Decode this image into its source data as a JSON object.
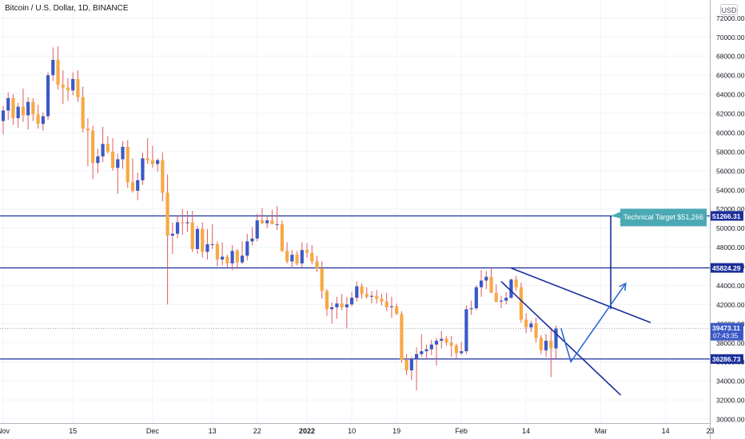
{
  "header": {
    "symbol_line": "Bitcoin / U.S. Dollar, 1D, BINANCE",
    "currency_label": "USD"
  },
  "colors": {
    "up_candle": "#3b59c6",
    "down_candle": "#f7a944",
    "wick": "#e05b5b",
    "drawing": "#1a2f9a",
    "callout": "#4aa9b3",
    "grid": "#f0f3fa",
    "axis_text": "#131722"
  },
  "chart_data": {
    "type": "candlestick",
    "ylim": [
      29500,
      73200
    ],
    "y_ticks": [
      30000,
      32000,
      34000,
      36000,
      38000,
      40000,
      42000,
      44000,
      46000,
      48000,
      50000,
      52000,
      54000,
      56000,
      58000,
      60000,
      62000,
      64000,
      66000,
      68000,
      70000,
      72000
    ],
    "y_tick_labels": [
      "30000.00",
      "32000.00",
      "34000.00",
      "36000.00",
      "38000.00",
      "40000.00",
      "42000.00",
      "44000.00",
      "46000.00",
      "48000.00",
      "50000.00",
      "52000.00",
      "54000.00",
      "56000.00",
      "58000.00",
      "60000.00",
      "62000.00",
      "64000.00",
      "66000.00",
      "68000.00",
      "70000.00",
      "72000.00"
    ],
    "x_ticks": [
      {
        "day": 0,
        "label": "Nov",
        "bold": false
      },
      {
        "day": 14,
        "label": "15",
        "bold": false
      },
      {
        "day": 30,
        "label": "Dec",
        "bold": false
      },
      {
        "day": 42,
        "label": "13",
        "bold": false
      },
      {
        "day": 51,
        "label": "22",
        "bold": false
      },
      {
        "day": 61,
        "label": "2022",
        "bold": true
      },
      {
        "day": 70,
        "label": "10",
        "bold": false
      },
      {
        "day": 79,
        "label": "19",
        "bold": false
      },
      {
        "day": 92,
        "label": "Feb",
        "bold": false
      },
      {
        "day": 105,
        "label": "14",
        "bold": false
      },
      {
        "day": 120,
        "label": "Mar",
        "bold": false
      },
      {
        "day": 133,
        "label": "14",
        "bold": false
      },
      {
        "day": 142,
        "label": "23",
        "bold": false
      }
    ],
    "candles": [
      [
        0,
        61200,
        62800,
        59800,
        62300
      ],
      [
        1,
        62300,
        64200,
        61300,
        63600
      ],
      [
        2,
        63600,
        64000,
        60800,
        61500
      ],
      [
        3,
        61500,
        63100,
        60500,
        62700
      ],
      [
        4,
        62700,
        64600,
        61100,
        61800
      ],
      [
        5,
        61800,
        63700,
        60300,
        63200
      ],
      [
        6,
        63200,
        63600,
        61200,
        61900
      ],
      [
        7,
        61900,
        62900,
        60400,
        60900
      ],
      [
        8,
        60900,
        62100,
        60200,
        61700
      ],
      [
        9,
        61700,
        66300,
        61300,
        66000
      ],
      [
        10,
        66000,
        68900,
        65400,
        67600
      ],
      [
        11,
        67600,
        69000,
        64500,
        65000
      ],
      [
        12,
        65000,
        66500,
        63000,
        64700
      ],
      [
        13,
        64700,
        65700,
        63300,
        64400
      ],
      [
        14,
        64400,
        66300,
        63900,
        65600
      ],
      [
        15,
        65600,
        66500,
        63200,
        63700
      ],
      [
        16,
        63700,
        64800,
        60000,
        60400
      ],
      [
        17,
        60400,
        61500,
        56500,
        60200
      ],
      [
        18,
        60200,
        60700,
        55100,
        56800
      ],
      [
        19,
        56800,
        58300,
        55700,
        57500
      ],
      [
        20,
        57500,
        60600,
        56900,
        58800
      ],
      [
        21,
        58800,
        59600,
        57800,
        58000
      ],
      [
        22,
        58000,
        59400,
        56000,
        56300
      ],
      [
        23,
        56300,
        57800,
        53600,
        57200
      ],
      [
        24,
        57200,
        59100,
        56200,
        58500
      ],
      [
        25,
        58500,
        59200,
        54200,
        54800
      ],
      [
        26,
        54800,
        57300,
        53700,
        53900
      ],
      [
        27,
        53900,
        55800,
        52900,
        55000
      ],
      [
        28,
        55000,
        57900,
        54500,
        57300
      ],
      [
        29,
        57300,
        59400,
        56700,
        57100
      ],
      [
        30,
        57100,
        58600,
        56300,
        56700
      ],
      [
        31,
        56700,
        57300,
        55900,
        57100
      ],
      [
        32,
        57100,
        57900,
        52800,
        53700
      ],
      [
        33,
        53700,
        55600,
        42000,
        49200
      ],
      [
        34,
        49200,
        50600,
        47300,
        49400
      ],
      [
        35,
        49400,
        51300,
        48900,
        50600
      ],
      [
        36,
        50600,
        52000,
        49300,
        50500
      ],
      [
        37,
        50500,
        51800,
        49600,
        50600
      ],
      [
        38,
        50600,
        51800,
        47500,
        47800
      ],
      [
        39,
        47800,
        50200,
        47300,
        49900
      ],
      [
        40,
        49900,
        50600,
        46900,
        47500
      ],
      [
        41,
        47500,
        49900,
        46700,
        48300
      ],
      [
        42,
        48300,
        50400,
        47800,
        48300
      ],
      [
        43,
        48300,
        48600,
        46000,
        46700
      ],
      [
        44,
        46700,
        48500,
        46100,
        47000
      ],
      [
        45,
        47000,
        47200,
        45900,
        46300
      ],
      [
        46,
        46300,
        48200,
        45600,
        47600
      ],
      [
        47,
        47600,
        47800,
        45700,
        46400
      ],
      [
        48,
        46400,
        48600,
        46200,
        47100
      ],
      [
        49,
        47100,
        49400,
        46600,
        48600
      ],
      [
        50,
        48600,
        50100,
        48200,
        48900
      ],
      [
        51,
        48900,
        51500,
        48600,
        50800
      ],
      [
        52,
        50800,
        52100,
        50400,
        50500
      ],
      [
        53,
        50500,
        51200,
        50000,
        50800
      ],
      [
        54,
        50800,
        51900,
        50500,
        50400
      ],
      [
        55,
        50400,
        52300,
        49800,
        50400
      ],
      [
        56,
        50400,
        50800,
        47500,
        47600
      ],
      [
        57,
        47600,
        48500,
        46300,
        46500
      ],
      [
        58,
        46500,
        47700,
        45800,
        47200
      ],
      [
        59,
        47200,
        47600,
        46100,
        46300
      ],
      [
        60,
        46300,
        48500,
        45900,
        47700
      ],
      [
        61,
        47700,
        48400,
        46900,
        47400
      ],
      [
        62,
        47400,
        48200,
        46200,
        46500
      ],
      [
        63,
        46500,
        47100,
        45400,
        45800
      ],
      [
        64,
        45800,
        46500,
        42600,
        43400
      ],
      [
        65,
        43400,
        43600,
        40800,
        41500
      ],
      [
        66,
        41500,
        42200,
        40000,
        41700
      ],
      [
        67,
        41700,
        42800,
        40500,
        42100
      ],
      [
        68,
        42100,
        43100,
        41400,
        41700
      ],
      [
        69,
        41700,
        42800,
        39500,
        42000
      ],
      [
        70,
        42000,
        43300,
        41800,
        42700
      ],
      [
        71,
        42700,
        44400,
        42300,
        43900
      ],
      [
        72,
        43900,
        44200,
        42600,
        43100
      ],
      [
        73,
        43100,
        43800,
        42600,
        42800
      ],
      [
        74,
        42800,
        43400,
        42100,
        42900
      ],
      [
        75,
        42900,
        43500,
        42100,
        42600
      ],
      [
        76,
        42600,
        43100,
        41900,
        42300
      ],
      [
        77,
        42300,
        43200,
        41300,
        41700
      ],
      [
        78,
        41700,
        42800,
        40600,
        41800
      ],
      [
        79,
        41800,
        42100,
        40900,
        41000
      ],
      [
        80,
        41000,
        41300,
        35900,
        36200
      ],
      [
        81,
        36200,
        36800,
        34600,
        35100
      ],
      [
        82,
        35100,
        36500,
        34100,
        36300
      ],
      [
        83,
        36300,
        37500,
        33000,
        36800
      ],
      [
        84,
        36800,
        38900,
        36500,
        37100
      ],
      [
        85,
        37100,
        37800,
        36200,
        37300
      ],
      [
        86,
        37300,
        38300,
        36700,
        37800
      ],
      [
        87,
        37800,
        38500,
        35600,
        38200
      ],
      [
        88,
        38200,
        39200,
        37400,
        38400
      ],
      [
        89,
        38400,
        38700,
        37700,
        38000
      ],
      [
        90,
        38000,
        38700,
        36500,
        37700
      ],
      [
        91,
        37700,
        37900,
        36300,
        36900
      ],
      [
        92,
        36900,
        38100,
        36700,
        37100
      ],
      [
        93,
        37100,
        41900,
        36800,
        41500
      ],
      [
        94,
        41500,
        42400,
        40900,
        41600
      ],
      [
        95,
        41600,
        44000,
        41400,
        43800
      ],
      [
        96,
        43800,
        45600,
        42800,
        44500
      ],
      [
        97,
        44500,
        45500,
        43600,
        44900
      ],
      [
        98,
        44900,
        45900,
        43500,
        43200
      ],
      [
        99,
        43200,
        44100,
        42200,
        42300
      ],
      [
        100,
        42300,
        42900,
        41600,
        42400
      ],
      [
        101,
        42400,
        43300,
        42000,
        42700
      ],
      [
        102,
        42700,
        44700,
        42600,
        44600
      ],
      [
        103,
        44600,
        45000,
        43400,
        43800
      ],
      [
        104,
        43800,
        44300,
        40100,
        40400
      ],
      [
        105,
        40400,
        41100,
        39000,
        39600
      ],
      [
        106,
        39600,
        40300,
        39100,
        40000
      ],
      [
        107,
        40000,
        40600,
        38000,
        38500
      ],
      [
        108,
        38500,
        38800,
        36800,
        37200
      ],
      [
        109,
        37200,
        38900,
        36500,
        38200
      ],
      [
        110,
        38200,
        39400,
        34400,
        37400
      ],
      [
        111,
        37400,
        39800,
        36200,
        39473
      ]
    ],
    "horizontal_levels": [
      {
        "price": 51266.31,
        "label": "51266.31"
      },
      {
        "price": 45824.29,
        "label": "45824.29"
      },
      {
        "price": 36286.73,
        "label": "36286.73"
      }
    ],
    "current_price": {
      "price": 39473.11,
      "label": "39473.11",
      "countdown": "07:43:35"
    },
    "annotation": "Technical Target $51,266",
    "drawings": {
      "wedge_upper": {
        "from": [
          102,
          45800
        ],
        "to": [
          130,
          40100
        ]
      },
      "wedge_lower": {
        "from": [
          100,
          44400
        ],
        "to": [
          124,
          32500
        ]
      },
      "target_projection": {
        "from": [
          122,
          41500
        ],
        "to": [
          122,
          51266
        ]
      },
      "path": [
        [
          112,
          39500
        ],
        [
          114,
          36000
        ],
        [
          125,
          44200
        ]
      ]
    }
  }
}
